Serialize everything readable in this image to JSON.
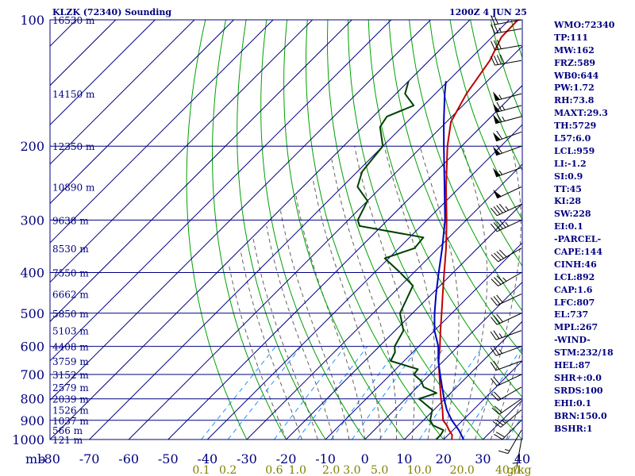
{
  "header": {
    "title": "KLZK (72340) Sounding",
    "datetime": "1200Z  4 JUN 25"
  },
  "indices": [
    "WMO:72340",
    "TP:111",
    "MW:162",
    "FRZ:589",
    "WB0:644",
    "PW:1.72",
    "RH:73.8",
    "MAXT:29.3",
    "TH:5729",
    "L57:6.0",
    "LCL:959",
    "LI:-1.2",
    "SI:0.9",
    "TT:45",
    "KI:28",
    "SW:228",
    "EI:0.1",
    "-PARCEL-",
    "CAPE:144",
    "CINH:46",
    "LCL:892",
    "CAP:1.6",
    "LFC:807",
    "EL:737",
    "MPL:267",
    "-WIND-",
    "STM:232/18",
    "HEL:87",
    "SHR+:0.0",
    "SRDS:100",
    "EHI:0.1",
    "BRN:150.0",
    "BSHR:1"
  ],
  "colors": {
    "grid": "#000080",
    "dry_adiabat": "#00a000",
    "moist_adiabat": "#606060",
    "mixing_ratio": "#2090ff",
    "temperature": "#c00000",
    "dewpoint": "#004000",
    "parcel": "#0000c0",
    "mixing_ratio_label": "#808000"
  },
  "chart_data": {
    "type": "line",
    "title": "KLZK (72340) Sounding",
    "xlabel": "",
    "ylabel": "mb",
    "y_unit_label": "mb",
    "y_scale": "log",
    "ylim": [
      1000,
      100
    ],
    "xlim": [
      -80,
      40
    ],
    "grid": true,
    "pressure_ticks": [
      1000,
      900,
      800,
      700,
      600,
      500,
      400,
      300,
      200,
      100
    ],
    "pressure_tick_labels": [
      "1000",
      "900",
      "800",
      "700",
      "600",
      "500",
      "400",
      "300",
      "200",
      "100"
    ],
    "temperature_ticks": [
      -80,
      -70,
      -60,
      -50,
      -40,
      -30,
      -20,
      -10,
      0,
      10,
      20,
      30,
      40
    ],
    "temperature_tick_labels": [
      "-80",
      "-70",
      "-60",
      "-50",
      "-40",
      "-30",
      "-20",
      "-10",
      "0",
      "10",
      "20",
      "30",
      "40"
    ],
    "height_labels": [
      {
        "p": 1000,
        "text": "121 m"
      },
      {
        "p": 950,
        "text": "566 m"
      },
      {
        "p": 900,
        "text": "1037 m"
      },
      {
        "p": 850,
        "text": "1526 m"
      },
      {
        "p": 800,
        "text": "2039 m"
      },
      {
        "p": 750,
        "text": "2579 m"
      },
      {
        "p": 700,
        "text": "3152 m"
      },
      {
        "p": 650,
        "text": "3759 m"
      },
      {
        "p": 600,
        "text": "4408 m"
      },
      {
        "p": 550,
        "text": "5103 m"
      },
      {
        "p": 500,
        "text": "5850 m"
      },
      {
        "p": 450,
        "text": "6662 m"
      },
      {
        "p": 400,
        "text": "7550 m"
      },
      {
        "p": 350,
        "text": "8530 m"
      },
      {
        "p": 300,
        "text": "9638 m"
      },
      {
        "p": 250,
        "text": "10890 m"
      },
      {
        "p": 200,
        "text": "12350 m"
      },
      {
        "p": 150,
        "text": "14150 m"
      },
      {
        "p": 100,
        "text": "16530 m"
      }
    ],
    "mixing_ratio_labels": [
      "0.1",
      "0.2",
      "0.6",
      "1.0",
      "2.0",
      "3.0",
      "5.0",
      "10.0",
      "20.0",
      "40.0",
      "g/kg"
    ],
    "mixing_ratio_values": [
      0.1,
      0.2,
      0.6,
      1.0,
      2.0,
      3.0,
      5.0,
      10.0,
      20.0,
      40.0
    ],
    "series": [
      {
        "name": "Temperature",
        "points": [
          [
            1000,
            22.1
          ],
          [
            975,
            21.0
          ],
          [
            950,
            19.0
          ],
          [
            925,
            17.2
          ],
          [
            900,
            15.0
          ],
          [
            850,
            12.2
          ],
          [
            800,
            9.0
          ],
          [
            750,
            5.8
          ],
          [
            700,
            2.4
          ],
          [
            650,
            -1.2
          ],
          [
            600,
            -4.6
          ],
          [
            550,
            -8.5
          ],
          [
            500,
            -12.6
          ],
          [
            450,
            -17.2
          ],
          [
            400,
            -22.3
          ],
          [
            350,
            -28.0
          ],
          [
            300,
            -35.0
          ],
          [
            250,
            -43.6
          ],
          [
            200,
            -53.6
          ],
          [
            175,
            -58.9
          ],
          [
            150,
            -62.1
          ],
          [
            125,
            -64.6
          ],
          [
            110,
            -67.6
          ],
          [
            100,
            -67.8
          ]
        ]
      },
      {
        "name": "Dewpoint",
        "points": [
          [
            1000,
            18.1
          ],
          [
            975,
            18.1
          ],
          [
            950,
            17.6
          ],
          [
            925,
            13.7
          ],
          [
            900,
            11.7
          ],
          [
            850,
            9.6
          ],
          [
            800,
            3.4
          ],
          [
            775,
            6.4
          ],
          [
            750,
            1.6
          ],
          [
            725,
            -0.6
          ],
          [
            700,
            -4.1
          ],
          [
            680,
            -4.4
          ],
          [
            650,
            -13.4
          ],
          [
            620,
            -14.5
          ],
          [
            600,
            -16.1
          ],
          [
            550,
            -17.9
          ],
          [
            500,
            -23.2
          ],
          [
            470,
            -24.7
          ],
          [
            430,
            -26.9
          ],
          [
            400,
            -33.5
          ],
          [
            370,
            -41.0
          ],
          [
            350,
            -36.0
          ],
          [
            330,
            -36.5
          ],
          [
            310,
            -55.6
          ],
          [
            300,
            -57.6
          ],
          [
            270,
            -60.0
          ],
          [
            250,
            -66.1
          ],
          [
            230,
            -68.8
          ],
          [
            200,
            -70.0
          ],
          [
            180,
            -75.6
          ],
          [
            170,
            -76.5
          ],
          [
            160,
            -72.5
          ],
          [
            150,
            -77.7
          ],
          [
            140,
            -80.0
          ]
        ]
      },
      {
        "name": "Parcel",
        "points": [
          [
            1000,
            25.1
          ],
          [
            950,
            21.5
          ],
          [
            900,
            17.2
          ],
          [
            850,
            13.3
          ],
          [
            800,
            9.8
          ],
          [
            750,
            6.3
          ],
          [
            700,
            2.6
          ],
          [
            650,
            -1.3
          ],
          [
            600,
            -5.0
          ],
          [
            550,
            -10.0
          ],
          [
            500,
            -14.4
          ],
          [
            450,
            -18.9
          ],
          [
            400,
            -23.7
          ],
          [
            350,
            -29.0
          ],
          [
            300,
            -35.4
          ],
          [
            250,
            -44.0
          ],
          [
            200,
            -54.5
          ],
          [
            175,
            -60.7
          ],
          [
            150,
            -67.6
          ],
          [
            140,
            -70.5
          ]
        ]
      }
    ],
    "wind_barbs": [
      {
        "p": 1000,
        "dir": 190,
        "spd": 5
      },
      {
        "p": 950,
        "dir": 210,
        "spd": 15
      },
      {
        "p": 900,
        "dir": 225,
        "spd": 20
      },
      {
        "p": 850,
        "dir": 230,
        "spd": 25
      },
      {
        "p": 800,
        "dir": 235,
        "spd": 20
      },
      {
        "p": 750,
        "dir": 240,
        "spd": 20
      },
      {
        "p": 700,
        "dir": 245,
        "spd": 20
      },
      {
        "p": 650,
        "dir": 250,
        "spd": 20
      },
      {
        "p": 600,
        "dir": 250,
        "spd": 25
      },
      {
        "p": 550,
        "dir": 250,
        "spd": 25
      },
      {
        "p": 500,
        "dir": 245,
        "spd": 30
      },
      {
        "p": 450,
        "dir": 245,
        "spd": 30
      },
      {
        "p": 400,
        "dir": 240,
        "spd": 35
      },
      {
        "p": 350,
        "dir": 240,
        "spd": 40
      },
      {
        "p": 300,
        "dir": 245,
        "spd": 45
      },
      {
        "p": 275,
        "dir": 245,
        "spd": 45
      },
      {
        "p": 250,
        "dir": 245,
        "spd": 50
      },
      {
        "p": 225,
        "dir": 250,
        "spd": 55
      },
      {
        "p": 200,
        "dir": 250,
        "spd": 60
      },
      {
        "p": 185,
        "dir": 250,
        "spd": 60
      },
      {
        "p": 170,
        "dir": 255,
        "spd": 65
      },
      {
        "p": 160,
        "dir": 255,
        "spd": 65
      },
      {
        "p": 150,
        "dir": 255,
        "spd": 55
      },
      {
        "p": 125,
        "dir": 260,
        "spd": 40
      },
      {
        "p": 115,
        "dir": 260,
        "spd": 30
      },
      {
        "p": 105,
        "dir": 260,
        "spd": 25
      },
      {
        "p": 100,
        "dir": 260,
        "spd": 20
      }
    ]
  }
}
